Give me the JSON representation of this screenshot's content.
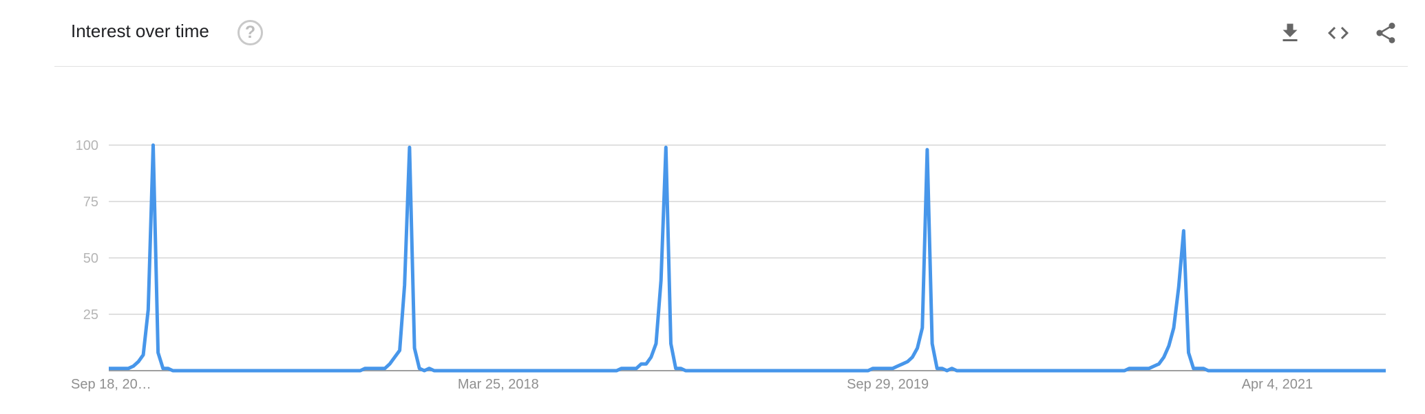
{
  "header": {
    "title": "Interest over time",
    "help_icon": "help-circle-icon",
    "help_glyph": "?",
    "actions": [
      {
        "name": "download-button",
        "icon": "download-icon"
      },
      {
        "name": "embed-button",
        "icon": "code-icon"
      },
      {
        "name": "share-button",
        "icon": "share-icon"
      }
    ]
  },
  "chart_data": {
    "type": "line",
    "title": "",
    "xlabel": "",
    "ylabel": "",
    "xlim": [
      "2016-09-18",
      "2021-09-05"
    ],
    "x_frequency": "weekly",
    "ylim": [
      0,
      100
    ],
    "yticks": [
      25,
      50,
      75,
      100
    ],
    "ytick_labels": [
      "25",
      "50",
      "75",
      "100"
    ],
    "xtick_labels": [
      {
        "label": "Sep 18, 20…",
        "date": "2016-09-18"
      },
      {
        "label": "Mar 25, 2018",
        "date": "2018-03-25"
      },
      {
        "label": "Sep 29, 2019",
        "date": "2019-09-29"
      },
      {
        "label": "Apr 4, 2021",
        "date": "2021-04-04"
      }
    ],
    "grid": true,
    "legend": "none",
    "color": "#4796ea",
    "series": [
      {
        "values": [
          1,
          1,
          1,
          1,
          1,
          2,
          4,
          7,
          27,
          100,
          8,
          1,
          1,
          0,
          0,
          0,
          0,
          0,
          0,
          0,
          0,
          0,
          0,
          0,
          0,
          0,
          0,
          0,
          0,
          0,
          0,
          0,
          0,
          0,
          0,
          0,
          0,
          0,
          0,
          0,
          0,
          0,
          0,
          0,
          0,
          0,
          0,
          0,
          0,
          0,
          0,
          0,
          1,
          1,
          1,
          1,
          1,
          3,
          6,
          9,
          38,
          99,
          10,
          1,
          0,
          1,
          0,
          0,
          0,
          0,
          0,
          0,
          0,
          0,
          0,
          0,
          0,
          0,
          0,
          0,
          0,
          0,
          0,
          0,
          0,
          0,
          0,
          0,
          0,
          0,
          0,
          0,
          0,
          0,
          0,
          0,
          0,
          0,
          0,
          0,
          0,
          0,
          0,
          0,
          1,
          1,
          1,
          1,
          3,
          3,
          6,
          12,
          40,
          99,
          12,
          1,
          1,
          0,
          0,
          0,
          0,
          0,
          0,
          0,
          0,
          0,
          0,
          0,
          0,
          0,
          0,
          0,
          0,
          0,
          0,
          0,
          0,
          0,
          0,
          0,
          0,
          0,
          0,
          0,
          0,
          0,
          0,
          0,
          0,
          0,
          0,
          0,
          0,
          0,
          0,
          1,
          1,
          1,
          1,
          1,
          2,
          3,
          4,
          6,
          10,
          19,
          98,
          12,
          1,
          1,
          0,
          1,
          0,
          0,
          0,
          0,
          0,
          0,
          0,
          0,
          0,
          0,
          0,
          0,
          0,
          0,
          0,
          0,
          0,
          0,
          0,
          0,
          0,
          0,
          0,
          0,
          0,
          0,
          0,
          0,
          0,
          0,
          0,
          0,
          0,
          0,
          0,
          1,
          1,
          1,
          1,
          1,
          2,
          3,
          6,
          11,
          19,
          37,
          62,
          8,
          1,
          1,
          1,
          0,
          0,
          0,
          0,
          0,
          0,
          0,
          0,
          0,
          0,
          0,
          0,
          0,
          0,
          0,
          0,
          0,
          0,
          0,
          0,
          0,
          0,
          0,
          0,
          0,
          0,
          0,
          0,
          0,
          0,
          0,
          0,
          0,
          0,
          0,
          0,
          0
        ]
      }
    ]
  }
}
